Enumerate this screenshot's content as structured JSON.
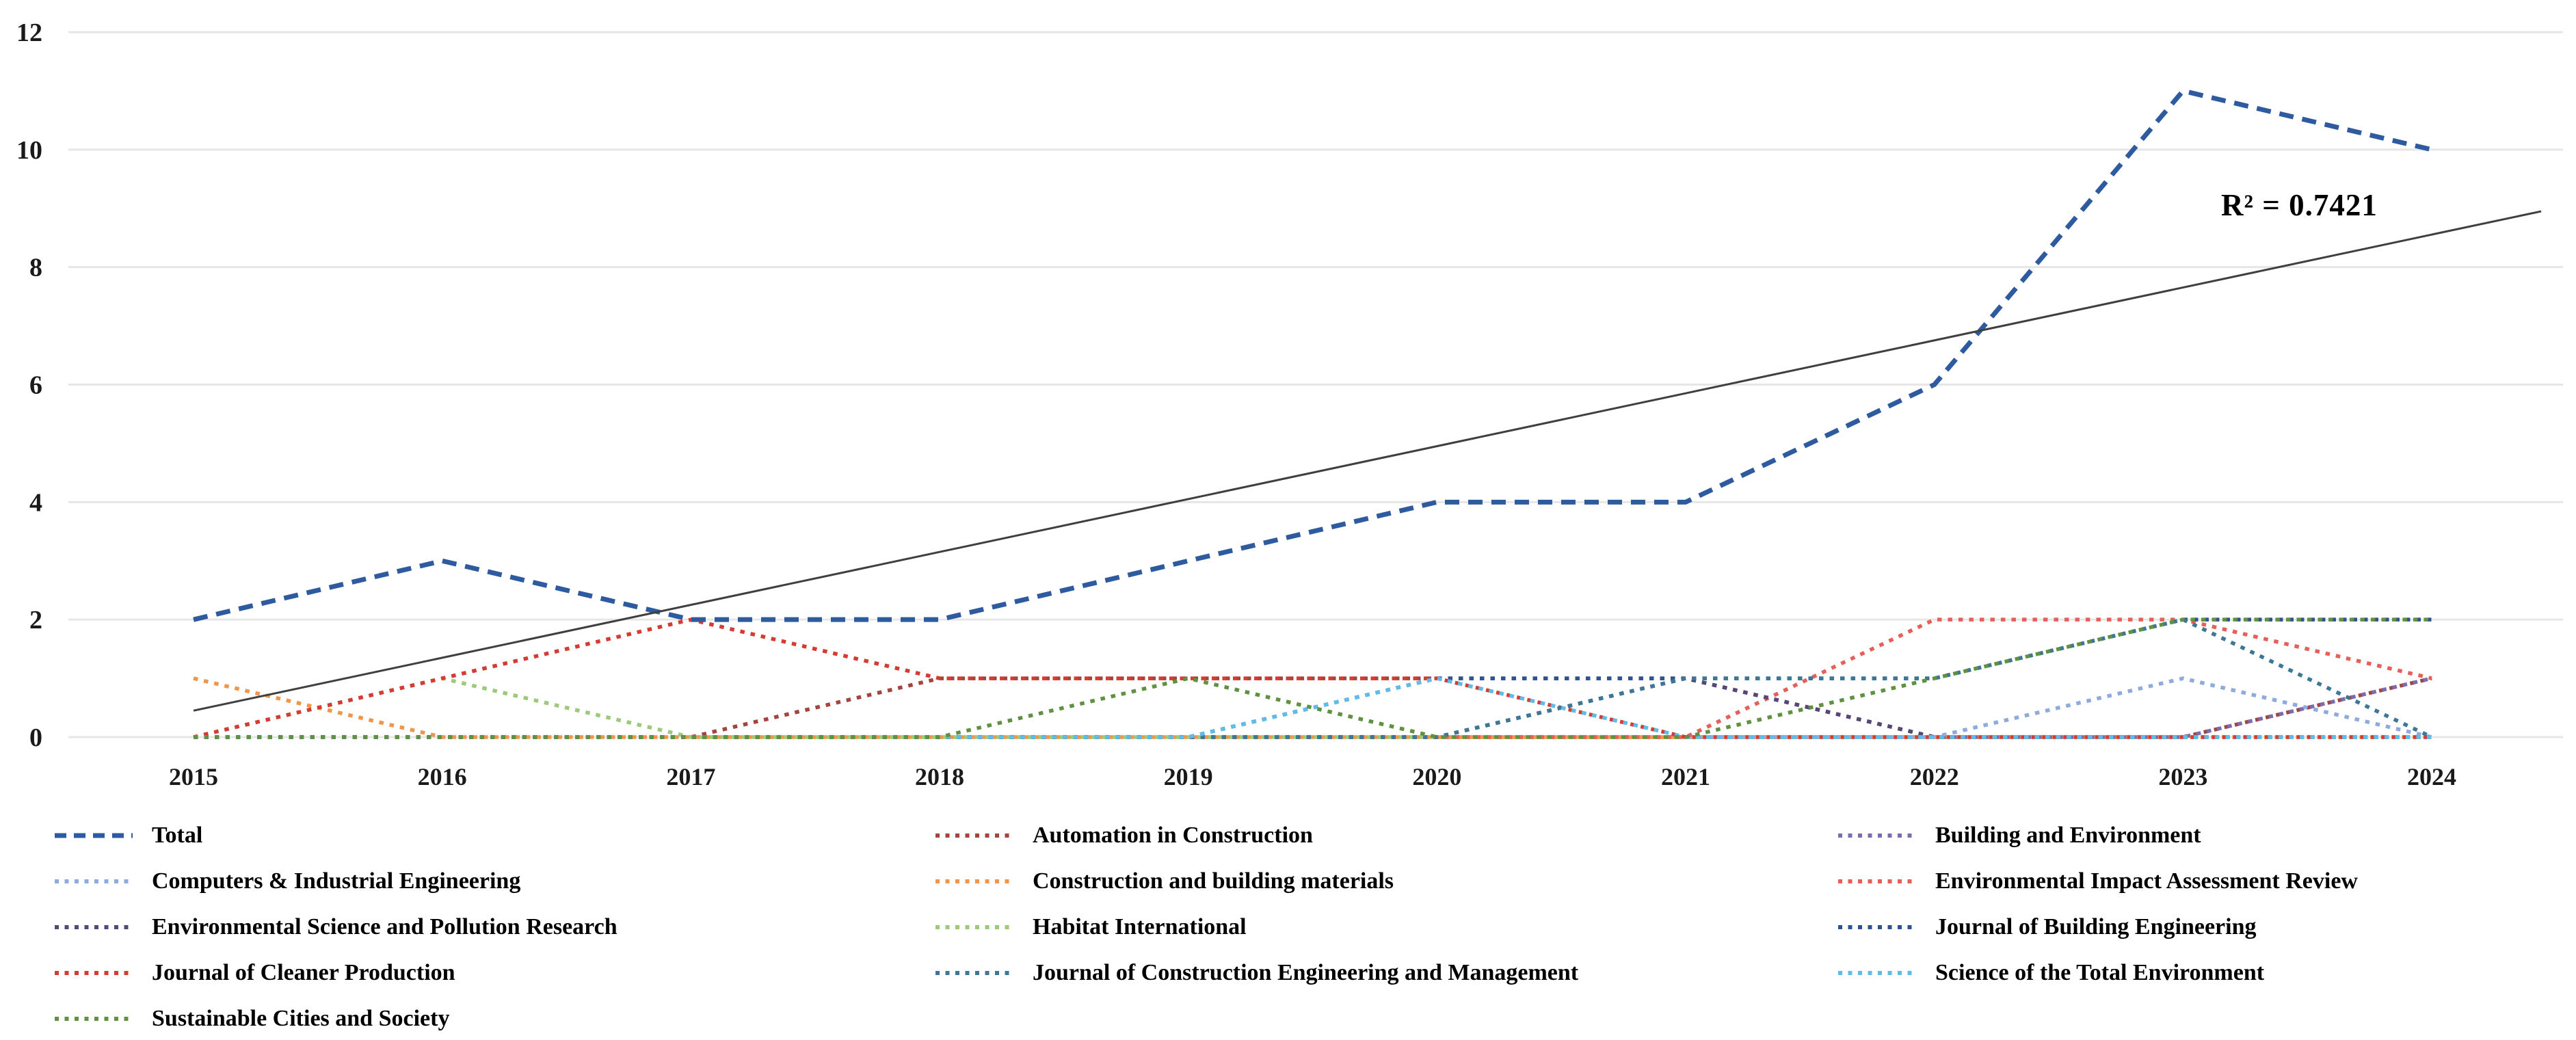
{
  "chart_data": {
    "type": "line",
    "title": "",
    "xlabel": "",
    "ylabel": "",
    "x_labels": [
      "2015",
      "2016",
      "2017",
      "2018",
      "2019",
      "2020",
      "2021",
      "2022",
      "2023",
      "2024"
    ],
    "yticks": [
      "0",
      "2",
      "4",
      "6",
      "8",
      "10",
      "12"
    ],
    "ylim": [
      0,
      12
    ],
    "grid": true,
    "legend_position": "bottom",
    "legend_columns": 3,
    "series": [
      {
        "name": "Total",
        "color": "#2E5B9F",
        "dash": "dash",
        "values": [
          2,
          3,
          2,
          2,
          3,
          4,
          4,
          6,
          11,
          10
        ]
      },
      {
        "name": "Automation in Construction",
        "color": "#A2453F",
        "dash": "dot",
        "values": [
          0,
          0,
          0,
          1,
          1,
          1,
          1,
          0,
          0,
          1
        ]
      },
      {
        "name": "Building and Environment",
        "color": "#7D6BB0",
        "dash": "dot",
        "values": [
          0,
          0,
          0,
          0,
          0,
          0,
          0,
          0,
          0,
          1
        ]
      },
      {
        "name": "Computers & Industrial Engineering",
        "color": "#8FAADC",
        "dash": "dot",
        "values": [
          0,
          0,
          0,
          0,
          0,
          0,
          0,
          0,
          1,
          0
        ]
      },
      {
        "name": "Construction and building materials",
        "color": "#F0964A",
        "dash": "dot",
        "values": [
          1,
          0,
          0,
          0,
          0,
          0,
          0,
          0,
          0,
          0
        ]
      },
      {
        "name": "Environmental Impact Assessment Review",
        "color": "#E66059",
        "dash": "dot",
        "values": [
          0,
          0,
          0,
          0,
          0,
          0,
          0,
          2,
          2,
          1
        ]
      },
      {
        "name": "Environmental Science and Pollution Research",
        "color": "#554878",
        "dash": "dot",
        "values": [
          0,
          0,
          0,
          0,
          0,
          0,
          1,
          0,
          0,
          0
        ]
      },
      {
        "name": "Habitat International",
        "color": "#9CC97A",
        "dash": "dot",
        "values": [
          0,
          1,
          0,
          0,
          0,
          0,
          0,
          0,
          0,
          0
        ]
      },
      {
        "name": "Journal of Building Engineering",
        "color": "#2F5293",
        "dash": "dot",
        "values": [
          0,
          0,
          0,
          0,
          0,
          1,
          1,
          1,
          2,
          2
        ]
      },
      {
        "name": "Journal of Cleaner Production",
        "color": "#D43B33",
        "dash": "dot",
        "values": [
          0,
          1,
          2,
          1,
          1,
          1,
          0,
          0,
          0,
          0
        ]
      },
      {
        "name": "Journal of Construction Engineering and Management",
        "color": "#3C7895",
        "dash": "dot",
        "values": [
          0,
          0,
          0,
          0,
          0,
          0,
          1,
          1,
          2,
          0
        ]
      },
      {
        "name": "Science of the Total Environment",
        "color": "#5FBBE8",
        "dash": "dot",
        "values": [
          0,
          0,
          0,
          0,
          0,
          1,
          0,
          0,
          0,
          0
        ]
      },
      {
        "name": "Sustainable Cities and Society",
        "color": "#5F9141",
        "dash": "dot",
        "values": [
          0,
          0,
          0,
          0,
          1,
          0,
          0,
          1,
          2,
          2
        ]
      }
    ],
    "trendline": {
      "label": "R² = 0.7421",
      "color": "#3F3F3F",
      "x1_year": 2015,
      "v1": 0.45,
      "x2_year": 2024.44,
      "v2": 8.95
    }
  },
  "annotation": {
    "r_squared": "R² = 0.7421"
  },
  "axes": {
    "y_tick_color": "#1A1A1A",
    "x_tick_color": "#1A1A1A",
    "grid_color": "#E6E6E6"
  }
}
